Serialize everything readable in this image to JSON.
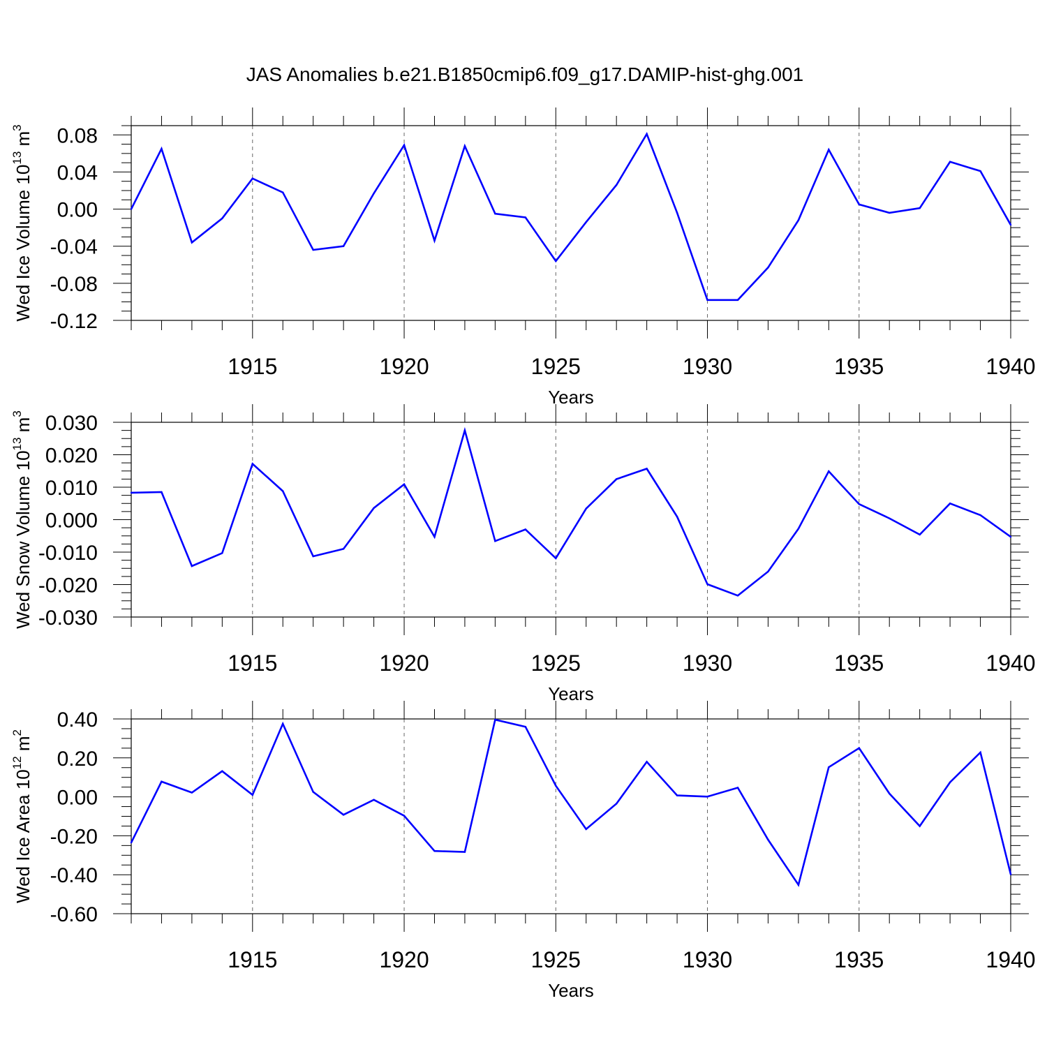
{
  "title": "JAS Anomalies b.e21.B1850cmip6.f09_g17.DAMIP-hist-ghg.001",
  "chart_data": [
    {
      "type": "line",
      "xlabel": "Years",
      "ylabel": {
        "text": "Wed Ice Volume 10",
        "exp": "13",
        "unit": " m",
        "unit_exp": "3"
      },
      "xlim": [
        1911,
        1940
      ],
      "ylim": [
        -0.12,
        0.09
      ],
      "xticks": [
        1915,
        1920,
        1925,
        1930,
        1935,
        1940
      ],
      "xtick_labels": [
        "1915",
        "1920",
        "1925",
        "1930",
        "1935",
        "1940"
      ],
      "yticks": [
        -0.12,
        -0.08,
        -0.04,
        0.0,
        0.04,
        0.08
      ],
      "ytick_labels": [
        "-0.12",
        "-0.08",
        "-0.04",
        "0.00",
        "0.04",
        "0.08"
      ],
      "grid": "vertical dashed at labeled years",
      "color": "#0000ff",
      "x": [
        1911,
        1912,
        1913,
        1914,
        1915,
        1916,
        1917,
        1918,
        1919,
        1920,
        1921,
        1922,
        1923,
        1924,
        1925,
        1926,
        1927,
        1928,
        1929,
        1930,
        1931,
        1932,
        1933,
        1934,
        1935,
        1936,
        1937,
        1938,
        1939,
        1940
      ],
      "values": [
        0.0,
        0.065,
        -0.036,
        -0.01,
        0.033,
        0.018,
        -0.044,
        -0.04,
        0.017,
        0.069,
        -0.034,
        0.068,
        -0.005,
        -0.009,
        -0.056,
        -0.014,
        0.026,
        0.081,
        -0.004,
        -0.098,
        -0.098,
        -0.063,
        -0.012,
        0.064,
        0.005,
        -0.004,
        0.001,
        0.051,
        0.041,
        -0.017
      ]
    },
    {
      "type": "line",
      "xlabel": "Years",
      "ylabel": {
        "text": "Wed Snow Volume 10",
        "exp": "13",
        "unit": " m",
        "unit_exp": "3"
      },
      "xlim": [
        1911,
        1940
      ],
      "ylim": [
        -0.03,
        0.03
      ],
      "xticks": [
        1915,
        1920,
        1925,
        1930,
        1935,
        1940
      ],
      "xtick_labels": [
        "1915",
        "1920",
        "1925",
        "1930",
        "1935",
        "1940"
      ],
      "yticks": [
        -0.03,
        -0.02,
        -0.01,
        0.0,
        0.01,
        0.02,
        0.03
      ],
      "ytick_labels": [
        "-0.030",
        "-0.020",
        "-0.010",
        "0.000",
        "0.010",
        "0.020",
        "0.030"
      ],
      "grid": "vertical dashed at labeled years",
      "color": "#0000ff",
      "x": [
        1911,
        1912,
        1913,
        1914,
        1915,
        1916,
        1917,
        1918,
        1919,
        1920,
        1921,
        1922,
        1923,
        1924,
        1925,
        1926,
        1927,
        1928,
        1929,
        1930,
        1931,
        1932,
        1933,
        1934,
        1935,
        1936,
        1937,
        1938,
        1939,
        1940
      ],
      "values": [
        0.0083,
        0.0085,
        -0.0143,
        -0.0103,
        0.0172,
        0.0088,
        -0.0113,
        -0.009,
        0.0036,
        0.0109,
        -0.0053,
        0.0275,
        -0.0066,
        -0.003,
        -0.0119,
        0.0034,
        0.0125,
        0.0157,
        0.0009,
        -0.0199,
        -0.0234,
        -0.016,
        -0.0028,
        0.0149,
        0.0048,
        0.0004,
        -0.0046,
        0.005,
        0.0014,
        -0.0053
      ]
    },
    {
      "type": "line",
      "xlabel": "Years",
      "ylabel": {
        "text": "Wed Ice Area 10",
        "exp": "12",
        "unit": " m",
        "unit_exp": "2"
      },
      "xlim": [
        1911,
        1940
      ],
      "ylim": [
        -0.6,
        0.4
      ],
      "xticks": [
        1915,
        1920,
        1925,
        1930,
        1935,
        1940
      ],
      "xtick_labels": [
        "1915",
        "1920",
        "1925",
        "1930",
        "1935",
        "1940"
      ],
      "yticks": [
        -0.6,
        -0.4,
        -0.2,
        0.0,
        0.2,
        0.4
      ],
      "ytick_labels": [
        "-0.60",
        "-0.40",
        "-0.20",
        "0.00",
        "0.20",
        "0.40"
      ],
      "grid": "vertical dashed at labeled years",
      "color": "#0000ff",
      "x": [
        1911,
        1912,
        1913,
        1914,
        1915,
        1916,
        1917,
        1918,
        1919,
        1920,
        1921,
        1922,
        1923,
        1924,
        1925,
        1926,
        1927,
        1928,
        1929,
        1930,
        1931,
        1932,
        1933,
        1934,
        1935,
        1936,
        1937,
        1938,
        1939,
        1940
      ],
      "values": [
        -0.235,
        0.078,
        0.022,
        0.132,
        0.01,
        0.375,
        0.025,
        -0.092,
        -0.015,
        -0.097,
        -0.278,
        -0.283,
        0.396,
        0.36,
        0.057,
        -0.166,
        -0.035,
        0.18,
        0.007,
        0.001,
        0.047,
        -0.22,
        -0.452,
        0.152,
        0.25,
        0.017,
        -0.15,
        0.075,
        0.228,
        -0.398
      ]
    }
  ]
}
